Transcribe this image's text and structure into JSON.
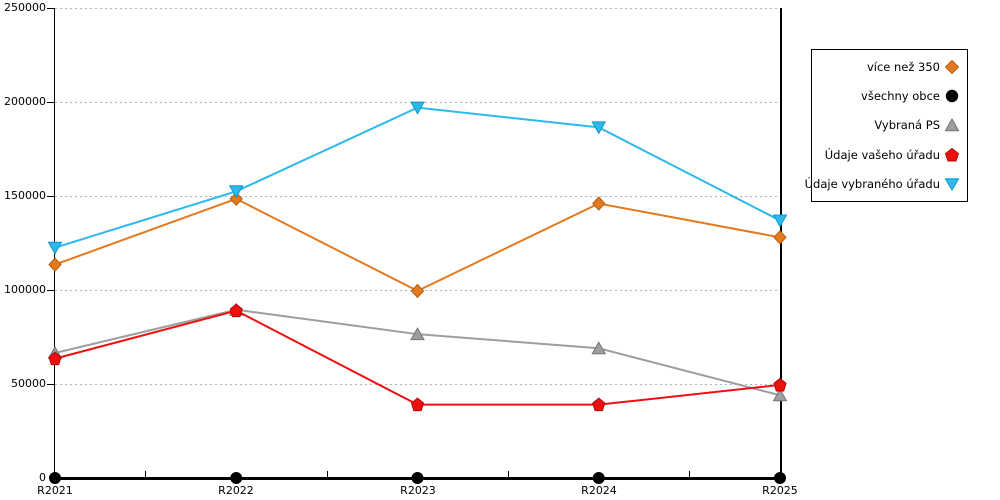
{
  "chart_data": {
    "type": "line",
    "title": "",
    "xlabel": "",
    "ylabel": "",
    "categories": [
      "R2021",
      "R2022",
      "R2023",
      "R2024",
      "R2025"
    ],
    "yticks": [
      "0",
      "50000",
      "100000",
      "150000",
      "200000",
      "250000"
    ],
    "ylim": [
      0,
      250000
    ],
    "grid": "horizontal-dotted",
    "legend_position": "right",
    "series": [
      {
        "name": "více než 350",
        "marker": "diamond",
        "color": "#E5791D",
        "border_color": "#B35E0F",
        "values": [
          113500,
          148500,
          99500,
          146000,
          128000
        ]
      },
      {
        "name": "všechny obce",
        "marker": "circle",
        "color": "#000000",
        "border_color": "#000000",
        "values": [
          0,
          0,
          0,
          0,
          0
        ]
      },
      {
        "name": "Vybraná PS",
        "marker": "triangle-up",
        "color": "#9E9E9E",
        "border_color": "#757575",
        "values": [
          66500,
          89500,
          76500,
          69000,
          44000
        ]
      },
      {
        "name": "Údaje vašeho úřadu",
        "marker": "pentagon",
        "color": "#EE1010",
        "border_color": "#B00707",
        "values": [
          63500,
          89000,
          39000,
          39000,
          49500
        ]
      },
      {
        "name": "Údaje vybraného úřadu",
        "marker": "triangle-down",
        "color": "#2EB8EB",
        "border_color": "#0B99CE",
        "values": [
          122500,
          152500,
          197000,
          186500,
          137000
        ]
      }
    ]
  }
}
